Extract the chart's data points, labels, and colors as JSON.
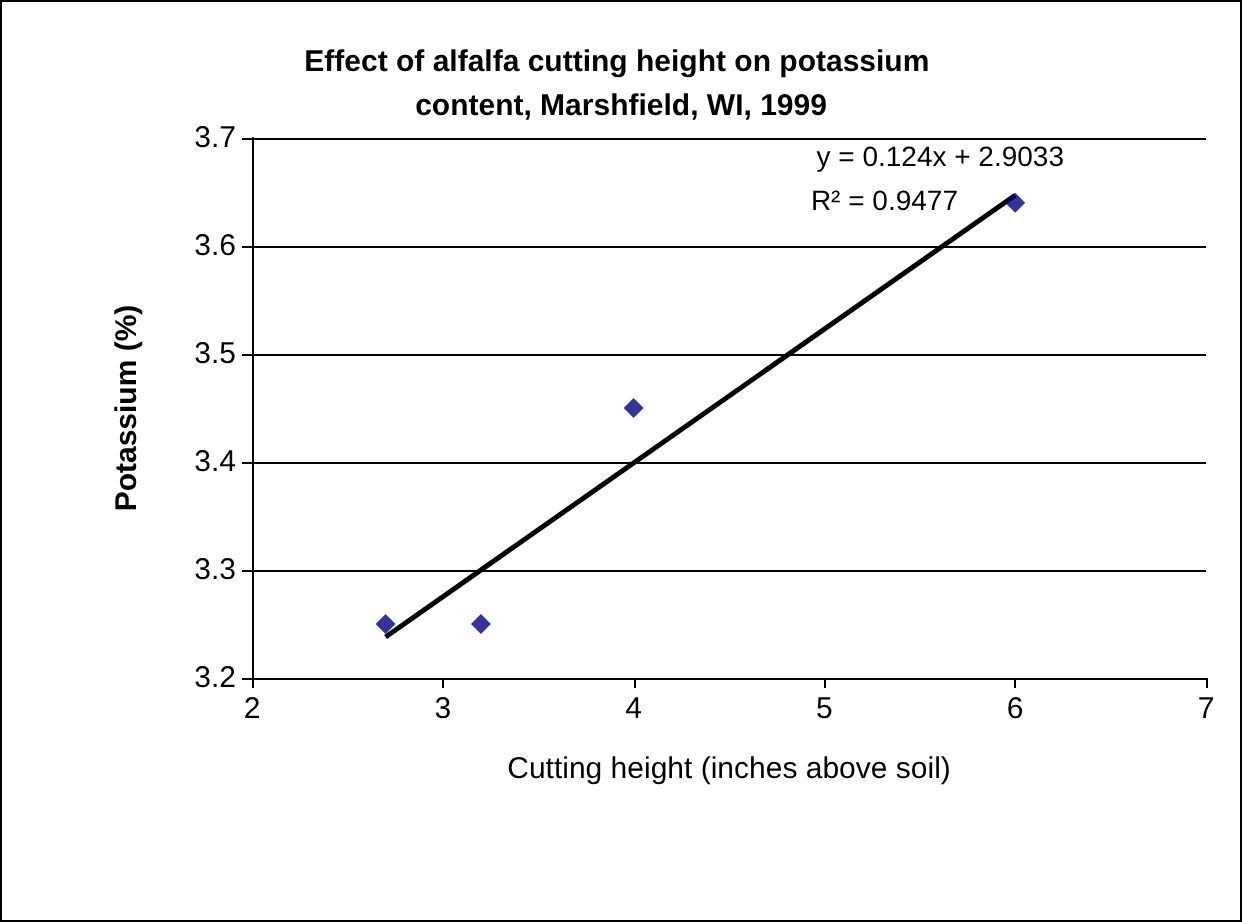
{
  "chart_data": {
    "type": "scatter",
    "title": "Effect of alfalfa cutting height on potassium content, Marshfield, WI, 1999",
    "xlabel": "Cutting height (inches above soil)",
    "ylabel": "Potassium (%)",
    "series": [
      {
        "type": "scatter",
        "color": "#000080",
        "marker": "diamond",
        "x": [
          2.7,
          3.2,
          4,
          6
        ],
        "values": [
          3.25,
          3.25,
          3.45,
          3.64
        ]
      },
      {
        "type": "line",
        "color": "#000000",
        "marker": "none",
        "x": [
          2.7,
          6
        ],
        "values": [
          3.238,
          3.647
        ]
      }
    ],
    "annotations": [
      "y = 0.124x + 2.9033",
      "R² = 0.9477"
    ],
    "xlim": [
      2,
      7
    ],
    "xticks": [
      2,
      3,
      4,
      5,
      6,
      7
    ],
    "ylim": [
      3.2,
      3.7
    ],
    "yticks": [
      3.2,
      3.3,
      3.4,
      3.5,
      3.6,
      3.7
    ],
    "grid": "y"
  }
}
